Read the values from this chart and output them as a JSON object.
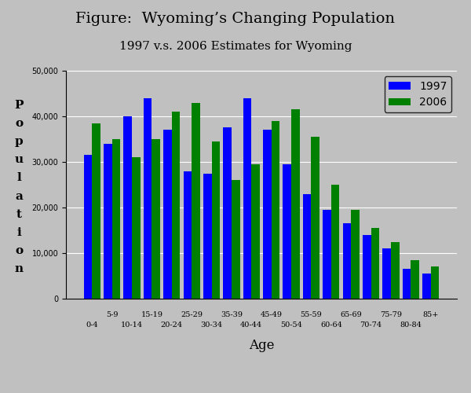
{
  "title": "Figure:  Wyoming’s Changing Population",
  "subtitle": "1997 v.s. 2006 Estimates for Wyoming",
  "xlabel": "Age",
  "ylabel_chars": [
    "P",
    "o",
    "p",
    "u",
    "l",
    "a",
    "t",
    "i",
    "o",
    "n"
  ],
  "age_groups_top": [
    "5-9",
    "15-19",
    "25-29",
    "35-39",
    "45-49",
    "55-59",
    "65-69",
    "75-79",
    "85+"
  ],
  "age_groups_bottom": [
    "0-4",
    "10-14",
    "20-24",
    "30-34",
    "40-44",
    "50-54",
    "60-64",
    "70-74",
    "80-84"
  ],
  "values_1997": [
    31500,
    34000,
    40000,
    44000,
    37000,
    28000,
    27500,
    37500,
    44000,
    37000,
    29500,
    23000,
    19500,
    16500,
    14000,
    11000,
    6500,
    5500
  ],
  "values_2006": [
    38500,
    35000,
    31000,
    35000,
    41000,
    43000,
    34500,
    26000,
    29500,
    39000,
    41500,
    35500,
    25000,
    19500,
    15500,
    12500,
    8500,
    7000
  ],
  "color_1997": "#0000FF",
  "color_2006": "#008000",
  "background_color": "#C0C0C0",
  "ylim": [
    0,
    50000
  ],
  "yticks": [
    0,
    10000,
    20000,
    30000,
    40000,
    50000
  ],
  "legend_labels": [
    "1997",
    "2006"
  ],
  "title_fontsize": 14,
  "subtitle_fontsize": 11,
  "xlabel_fontsize": 12,
  "tick_label_fontsize": 7,
  "legend_fontsize": 10,
  "ylabel_fontsize": 11
}
